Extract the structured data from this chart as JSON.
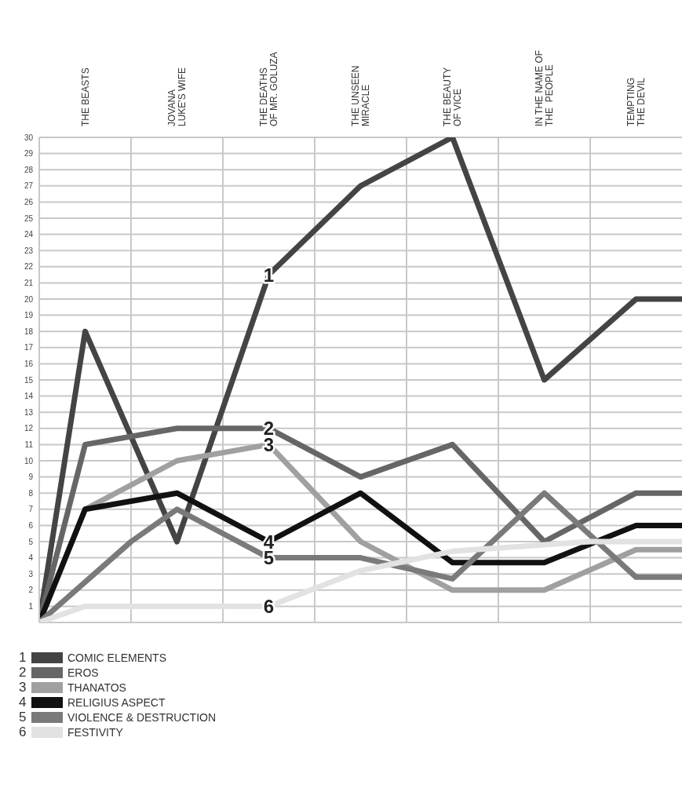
{
  "chart_data": {
    "type": "line",
    "categories": [
      null,
      "THE BEASTS",
      null,
      "JOVANA\nLUKE'S WIFE",
      null,
      "THE DEATHS\nOF MR. GOLUZA",
      null,
      "THE UNSEEN\nMIRACLE",
      null,
      "THE BEAUTY\nOF VICE",
      null,
      "IN THE NAME OF\nTHE  PEOPLE",
      null,
      "TEMPTING\nTHE DEVIL",
      null
    ],
    "ylim": [
      0,
      30
    ],
    "yticks": [
      1,
      2,
      3,
      4,
      5,
      6,
      7,
      8,
      9,
      10,
      11,
      12,
      13,
      14,
      15,
      16,
      17,
      18,
      19,
      20,
      21,
      22,
      23,
      24,
      25,
      26,
      27,
      28,
      29,
      30
    ],
    "grid": true,
    "legend": "bottom",
    "marker": "none",
    "line_style": "solid",
    "series": [
      {
        "name": "COMIC ELEMENTS",
        "color": "#444444",
        "values": [
          0,
          18,
          null,
          5,
          null,
          21.5,
          null,
          27,
          null,
          30,
          null,
          15,
          null,
          20,
          20
        ]
      },
      {
        "name": "EROS",
        "color": "#666666",
        "values": [
          0,
          11,
          null,
          12,
          null,
          12,
          null,
          9,
          null,
          11,
          null,
          5,
          null,
          8,
          8
        ]
      },
      {
        "name": "THANATOS",
        "color": "#a0a0a0",
        "values": [
          0,
          7,
          null,
          10,
          null,
          11,
          null,
          5,
          null,
          2,
          null,
          2,
          null,
          4.5,
          4.5
        ]
      },
      {
        "name": "RELIGIUS ASPECT",
        "color": "#111111",
        "values": [
          0,
          7,
          null,
          8,
          null,
          5,
          null,
          8,
          null,
          3.7,
          null,
          3.7,
          null,
          6,
          6
        ]
      },
      {
        "name": "VIOLENCE & DESTRUCTION",
        "color": "#7a7a7a",
        "values": [
          0,
          null,
          5,
          7,
          null,
          4,
          null,
          4,
          null,
          2.7,
          null,
          8,
          null,
          2.8,
          2.8
        ]
      },
      {
        "name": "FESTIVITY",
        "color": "#e2e2e2",
        "values": [
          0,
          1,
          null,
          null,
          null,
          1,
          null,
          3.2,
          null,
          4.4,
          null,
          null,
          5,
          null,
          5
        ]
      }
    ],
    "annotations": [
      {
        "text": "1",
        "x": "THE DEATHS\nOF MR. GOLUZA",
        "y": 21.5
      },
      {
        "text": "2",
        "x": "THE DEATHS\nOF MR. GOLUZA",
        "y": 12
      },
      {
        "text": "3",
        "x": "THE DEATHS\nOF MR. GOLUZA",
        "y": 11
      },
      {
        "text": "4",
        "x": "THE DEATHS\nOF MR. GOLUZA",
        "y": 5
      },
      {
        "text": "5",
        "x": "THE DEATHS\nOF MR. GOLUZA",
        "y": 4
      },
      {
        "text": "6",
        "x": "THE DEATHS\nOF MR. GOLUZA",
        "y": 1
      }
    ]
  }
}
